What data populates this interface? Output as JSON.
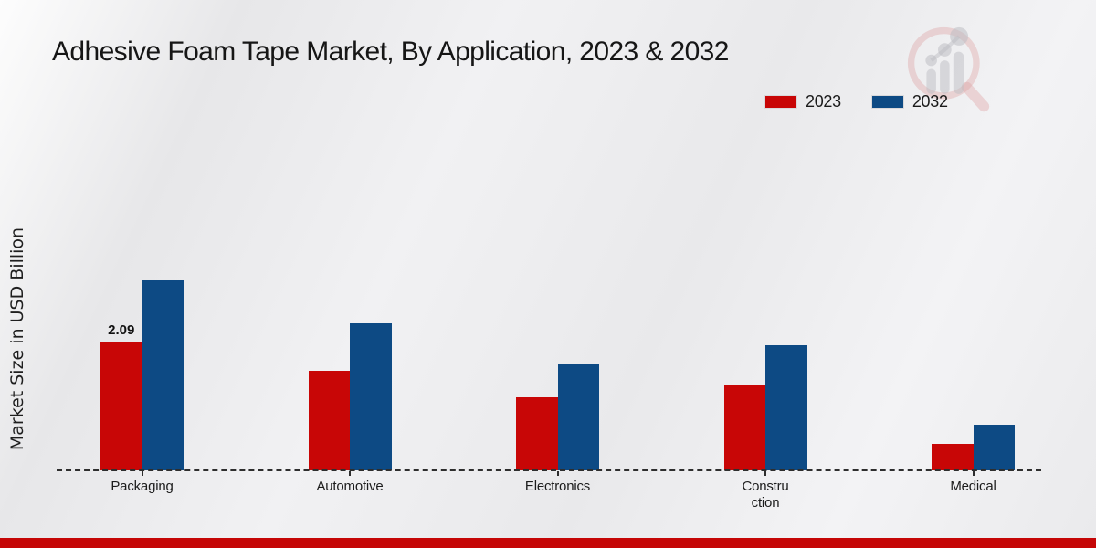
{
  "chart_data": {
    "type": "bar",
    "title": "Adhesive Foam Tape Market, By Application, 2023 & 2032",
    "ylabel": "Market Size in USD Billion",
    "xlabel": "",
    "categories": [
      "Packaging",
      "Automotive",
      "Electronics",
      "Construction",
      "Medical"
    ],
    "category_display": [
      [
        "Packaging"
      ],
      [
        "Automotive"
      ],
      [
        "Electronics"
      ],
      [
        "Constru",
        "ction"
      ],
      [
        "Medical"
      ]
    ],
    "series": [
      {
        "name": "2023",
        "color": "#c80606",
        "values": [
          2.09,
          1.63,
          1.19,
          1.41,
          0.44
        ]
      },
      {
        "name": "2032",
        "color": "#0d4a84",
        "values": [
          3.1,
          2.41,
          1.75,
          2.05,
          0.74
        ]
      }
    ],
    "data_labels": [
      {
        "series": "2023",
        "category": "Packaging",
        "text": "2.09"
      }
    ],
    "ylim": [
      0,
      3.5
    ],
    "grid": false,
    "legend_position": "top-right",
    "baseline_style": "dashed"
  },
  "watermark": {
    "name": "market-research-future-logo"
  },
  "footer": {
    "accent_color": "#c50606"
  }
}
